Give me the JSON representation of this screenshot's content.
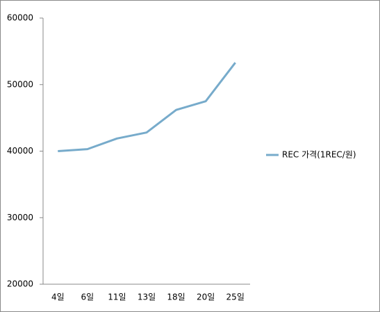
{
  "chart_data": {
    "type": "line",
    "categories": [
      "4일",
      "6일",
      "11일",
      "13일",
      "18일",
      "20일",
      "25일"
    ],
    "series": [
      {
        "name": "REC 가격(1REC/원)",
        "color": "#77abcb",
        "values": [
          40000,
          40300,
          41900,
          42800,
          46200,
          47500,
          53300
        ]
      }
    ],
    "ylim": [
      20000,
      60000
    ],
    "yticks": [
      20000,
      30000,
      40000,
      50000,
      60000
    ],
    "grid": false,
    "legend": "right"
  }
}
